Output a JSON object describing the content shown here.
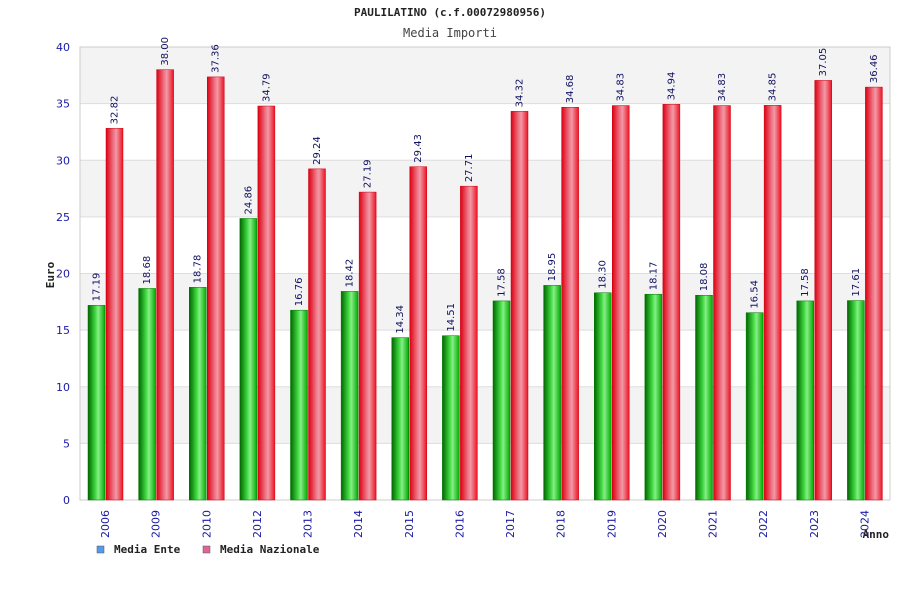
{
  "chart_data": {
    "type": "bar",
    "title": "PAULILATINO (c.f.00072980956)",
    "subtitle": "Media Importi",
    "xlabel": "Anno",
    "ylabel": "Euro",
    "ylim": [
      0,
      40
    ],
    "yticks": [
      "0",
      "5",
      "10",
      "15",
      "20",
      "25",
      "30",
      "35",
      "40"
    ],
    "categories": [
      "2006",
      "2009",
      "2010",
      "2012",
      "2013",
      "2014",
      "2015",
      "2016",
      "2017",
      "2018",
      "2019",
      "2020",
      "2021",
      "2022",
      "2023",
      "2024"
    ],
    "series": [
      {
        "name": "Media Ente",
        "color": "#00bb00",
        "legend_color": "#5599ee",
        "values": [
          17.19,
          18.68,
          18.78,
          24.86,
          16.76,
          18.42,
          14.34,
          14.51,
          17.58,
          18.95,
          18.3,
          18.17,
          18.08,
          16.54,
          17.58,
          17.61
        ],
        "labels": [
          "17.19",
          "18.68",
          "18.78",
          "24.86",
          "16.76",
          "18.42",
          "14.34",
          "14.51",
          "17.58",
          "18.95",
          "18.30",
          "18.17",
          "18.08",
          "16.54",
          "17.58",
          "17.61"
        ]
      },
      {
        "name": "Media Nazionale",
        "color": "#ee1122",
        "legend_color": "#dd6699",
        "values": [
          32.82,
          38.0,
          37.36,
          34.79,
          29.24,
          27.19,
          29.43,
          27.71,
          34.32,
          34.68,
          34.83,
          34.94,
          34.83,
          34.85,
          37.05,
          36.46
        ],
        "labels": [
          "32.82",
          "38.00",
          "37.36",
          "34.79",
          "29.24",
          "27.19",
          "29.43",
          "27.71",
          "34.32",
          "34.68",
          "34.83",
          "34.94",
          "34.83",
          "34.85",
          "37.05",
          "36.46"
        ]
      }
    ],
    "grid": true,
    "legend": "bottom-left"
  }
}
